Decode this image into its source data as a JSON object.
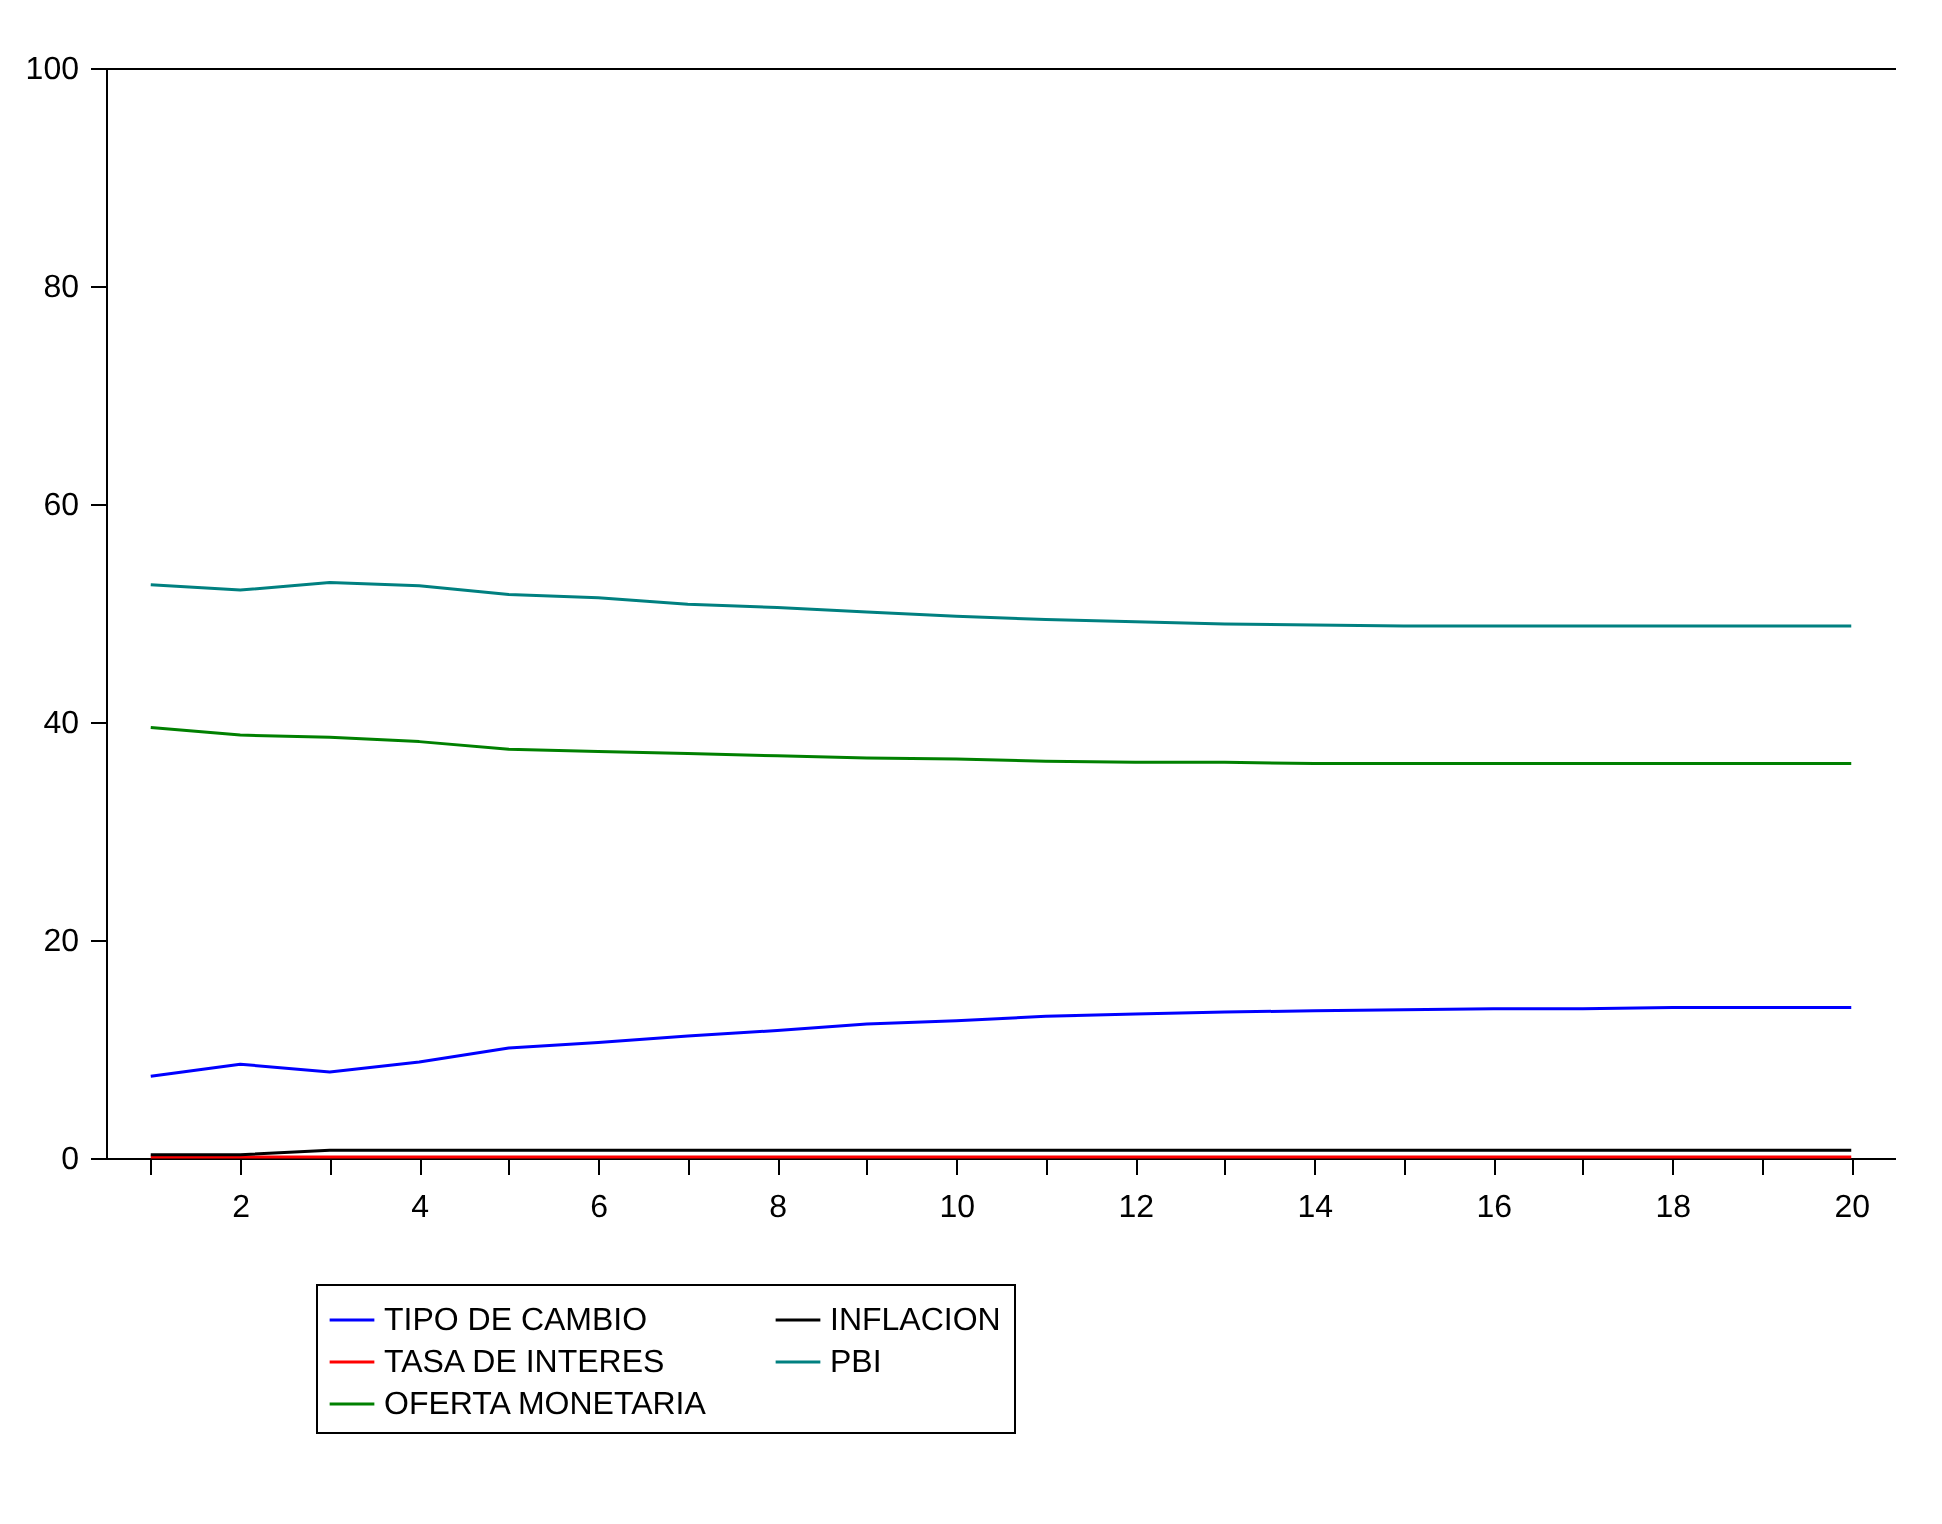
{
  "chart_data": {
    "type": "line",
    "x": [
      1,
      2,
      3,
      4,
      5,
      6,
      7,
      8,
      9,
      10,
      11,
      12,
      13,
      14,
      15,
      16,
      17,
      18,
      19,
      20
    ],
    "xlim": [
      0.5,
      20.5
    ],
    "xticks": [
      {
        "value": 1,
        "label": null
      },
      2,
      {
        "value": 3,
        "label": null
      },
      4,
      {
        "value": 5,
        "label": null
      },
      6,
      {
        "value": 7,
        "label": null
      },
      8,
      {
        "value": 9,
        "label": null
      },
      10,
      {
        "value": 11,
        "label": null
      },
      12,
      {
        "value": 13,
        "label": null
      },
      14,
      {
        "value": 15,
        "label": null
      },
      16,
      {
        "value": 17,
        "label": null
      },
      18,
      {
        "value": 19,
        "label": null
      },
      20
    ],
    "ylim": [
      0,
      100
    ],
    "yticks": [
      0,
      20,
      40,
      60,
      80,
      100
    ],
    "grid": false,
    "legend": "bottom",
    "line_style": "solid",
    "marker": "none",
    "series": [
      {
        "name": "TIPO DE CAMBIO",
        "color": "#0000ff",
        "values": [
          7.5,
          8.6,
          7.9,
          8.8,
          10.1,
          10.6,
          11.2,
          11.7,
          12.3,
          12.6,
          13.0,
          13.2,
          13.4,
          13.5,
          13.6,
          13.7,
          13.7,
          13.8,
          13.8,
          13.8
        ]
      },
      {
        "name": "TASA DE INTERES",
        "color": "#ff0000",
        "values": [
          0.1,
          0.1,
          0.1,
          0.1,
          0.1,
          0.1,
          0.1,
          0.1,
          0.1,
          0.1,
          0.1,
          0.1,
          0.1,
          0.1,
          0.1,
          0.1,
          0.1,
          0.1,
          0.1,
          0.1
        ]
      },
      {
        "name": "OFERTA MONETARIA",
        "color": "#008000",
        "values": [
          39.5,
          38.8,
          38.6,
          38.2,
          37.5,
          37.3,
          37.1,
          36.9,
          36.7,
          36.6,
          36.4,
          36.3,
          36.3,
          36.2,
          36.2,
          36.2,
          36.2,
          36.2,
          36.2,
          36.2
        ]
      },
      {
        "name": "INFLACION",
        "color": "#000000",
        "values": [
          0.3,
          0.3,
          0.7,
          0.7,
          0.7,
          0.7,
          0.7,
          0.7,
          0.7,
          0.7,
          0.7,
          0.7,
          0.7,
          0.7,
          0.7,
          0.7,
          0.7,
          0.7,
          0.7,
          0.7
        ]
      },
      {
        "name": "PBI",
        "color": "#008080",
        "values": [
          52.6,
          52.1,
          52.8,
          52.5,
          51.7,
          51.4,
          50.8,
          50.5,
          50.1,
          49.7,
          49.4,
          49.2,
          49.0,
          48.9,
          48.8,
          48.8,
          48.8,
          48.8,
          48.8,
          48.8
        ]
      }
    ]
  }
}
